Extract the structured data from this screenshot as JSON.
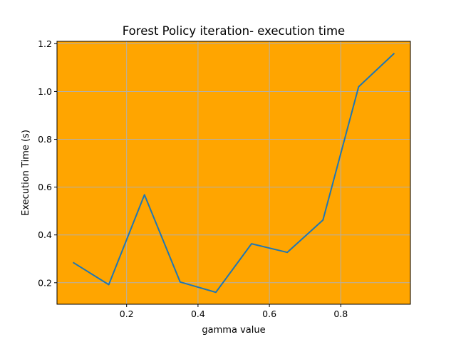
{
  "chart_data": {
    "type": "line",
    "title": "Forest Policy iteration- execution time",
    "xlabel": "gamma value",
    "ylabel": "Execution Time (s)",
    "xlim": [
      0.005,
      0.995
    ],
    "ylim": [
      0.11,
      1.21
    ],
    "xticks": [
      0.2,
      0.4,
      0.6,
      0.8
    ],
    "xtick_labels": [
      "0.2",
      "0.4",
      "0.6",
      "0.8"
    ],
    "yticks": [
      0.2,
      0.4,
      0.6,
      0.8,
      1.0,
      1.2
    ],
    "ytick_labels": [
      "0.2",
      "0.4",
      "0.6",
      "0.8",
      "1.0",
      "1.2"
    ],
    "grid": true,
    "background_color": "#ffa500",
    "grid_color": "#b0b0b0",
    "series": [
      {
        "color": "#1f77b4",
        "x": [
          0.05,
          0.15,
          0.25,
          0.35,
          0.45,
          0.55,
          0.65,
          0.75,
          0.85,
          0.95
        ],
        "y": [
          0.285,
          0.192,
          0.568,
          0.203,
          0.16,
          0.363,
          0.327,
          0.462,
          1.02,
          1.16
        ]
      }
    ]
  }
}
